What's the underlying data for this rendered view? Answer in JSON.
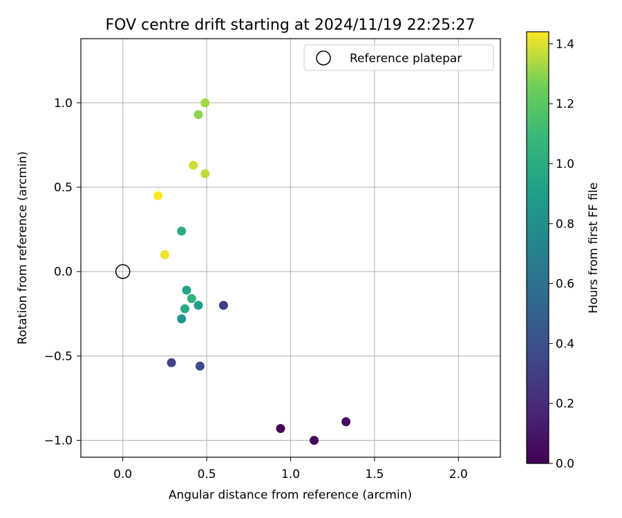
{
  "chart_data": {
    "type": "scatter",
    "title": "FOV centre drift starting at 2024/11/19 22:25:27",
    "xlabel": "Angular distance from reference (arcmin)",
    "ylabel": "Rotation from reference (arcmin)",
    "xlim": [
      -0.25,
      2.25
    ],
    "ylim": [
      -1.1,
      1.38
    ],
    "xticks": [
      0.0,
      0.5,
      1.0,
      1.5,
      2.0
    ],
    "xtick_labels": [
      "0.0",
      "0.5",
      "1.0",
      "1.5",
      "2.0"
    ],
    "yticks": [
      -1.0,
      -0.5,
      0.0,
      0.5,
      1.0
    ],
    "ytick_labels": [
      "−1.0",
      "−0.5",
      "0.0",
      "0.5",
      "1.0"
    ],
    "grid": true,
    "legend": {
      "placement": "upper right",
      "entries": [
        "Reference platepar"
      ]
    },
    "reference_point": {
      "x": 0.0,
      "y": 0.0,
      "marker": "open circle",
      "color": "#000000"
    },
    "colorbar": {
      "label": "Hours from first FF file",
      "colormap": "viridis",
      "range": [
        0.0,
        1.44
      ],
      "ticks": [
        0.0,
        0.2,
        0.4,
        0.6,
        0.8,
        1.0,
        1.2,
        1.4
      ],
      "tick_labels": [
        "0.0",
        "0.2",
        "0.4",
        "0.6",
        "0.8",
        "1.0",
        "1.2",
        "1.4"
      ]
    },
    "points": [
      {
        "x": 0.94,
        "y": -0.93,
        "hours": 0.0
      },
      {
        "x": 1.14,
        "y": -1.0,
        "hours": 0.02
      },
      {
        "x": 1.33,
        "y": -0.89,
        "hours": 0.04
      },
      {
        "x": 0.6,
        "y": -0.2,
        "hours": 0.3
      },
      {
        "x": 0.29,
        "y": -0.54,
        "hours": 0.33
      },
      {
        "x": 0.46,
        "y": -0.56,
        "hours": 0.36
      },
      {
        "x": 0.35,
        "y": -0.28,
        "hours": 0.85
      },
      {
        "x": 0.45,
        "y": -0.2,
        "hours": 0.9
      },
      {
        "x": 0.38,
        "y": -0.11,
        "hours": 0.93
      },
      {
        "x": 0.37,
        "y": -0.22,
        "hours": 0.97
      },
      {
        "x": 0.35,
        "y": 0.24,
        "hours": 1.0
      },
      {
        "x": 0.41,
        "y": -0.16,
        "hours": 1.05
      },
      {
        "x": 0.21,
        "y": 0.45,
        "hours": 1.44
      },
      {
        "x": 0.25,
        "y": 0.1,
        "hours": 1.42
      },
      {
        "x": 0.42,
        "y": 0.63,
        "hours": 1.38
      },
      {
        "x": 0.49,
        "y": 0.58,
        "hours": 1.36
      },
      {
        "x": 0.45,
        "y": 0.93,
        "hours": 1.3
      },
      {
        "x": 0.49,
        "y": 1.0,
        "hours": 1.33
      }
    ]
  }
}
